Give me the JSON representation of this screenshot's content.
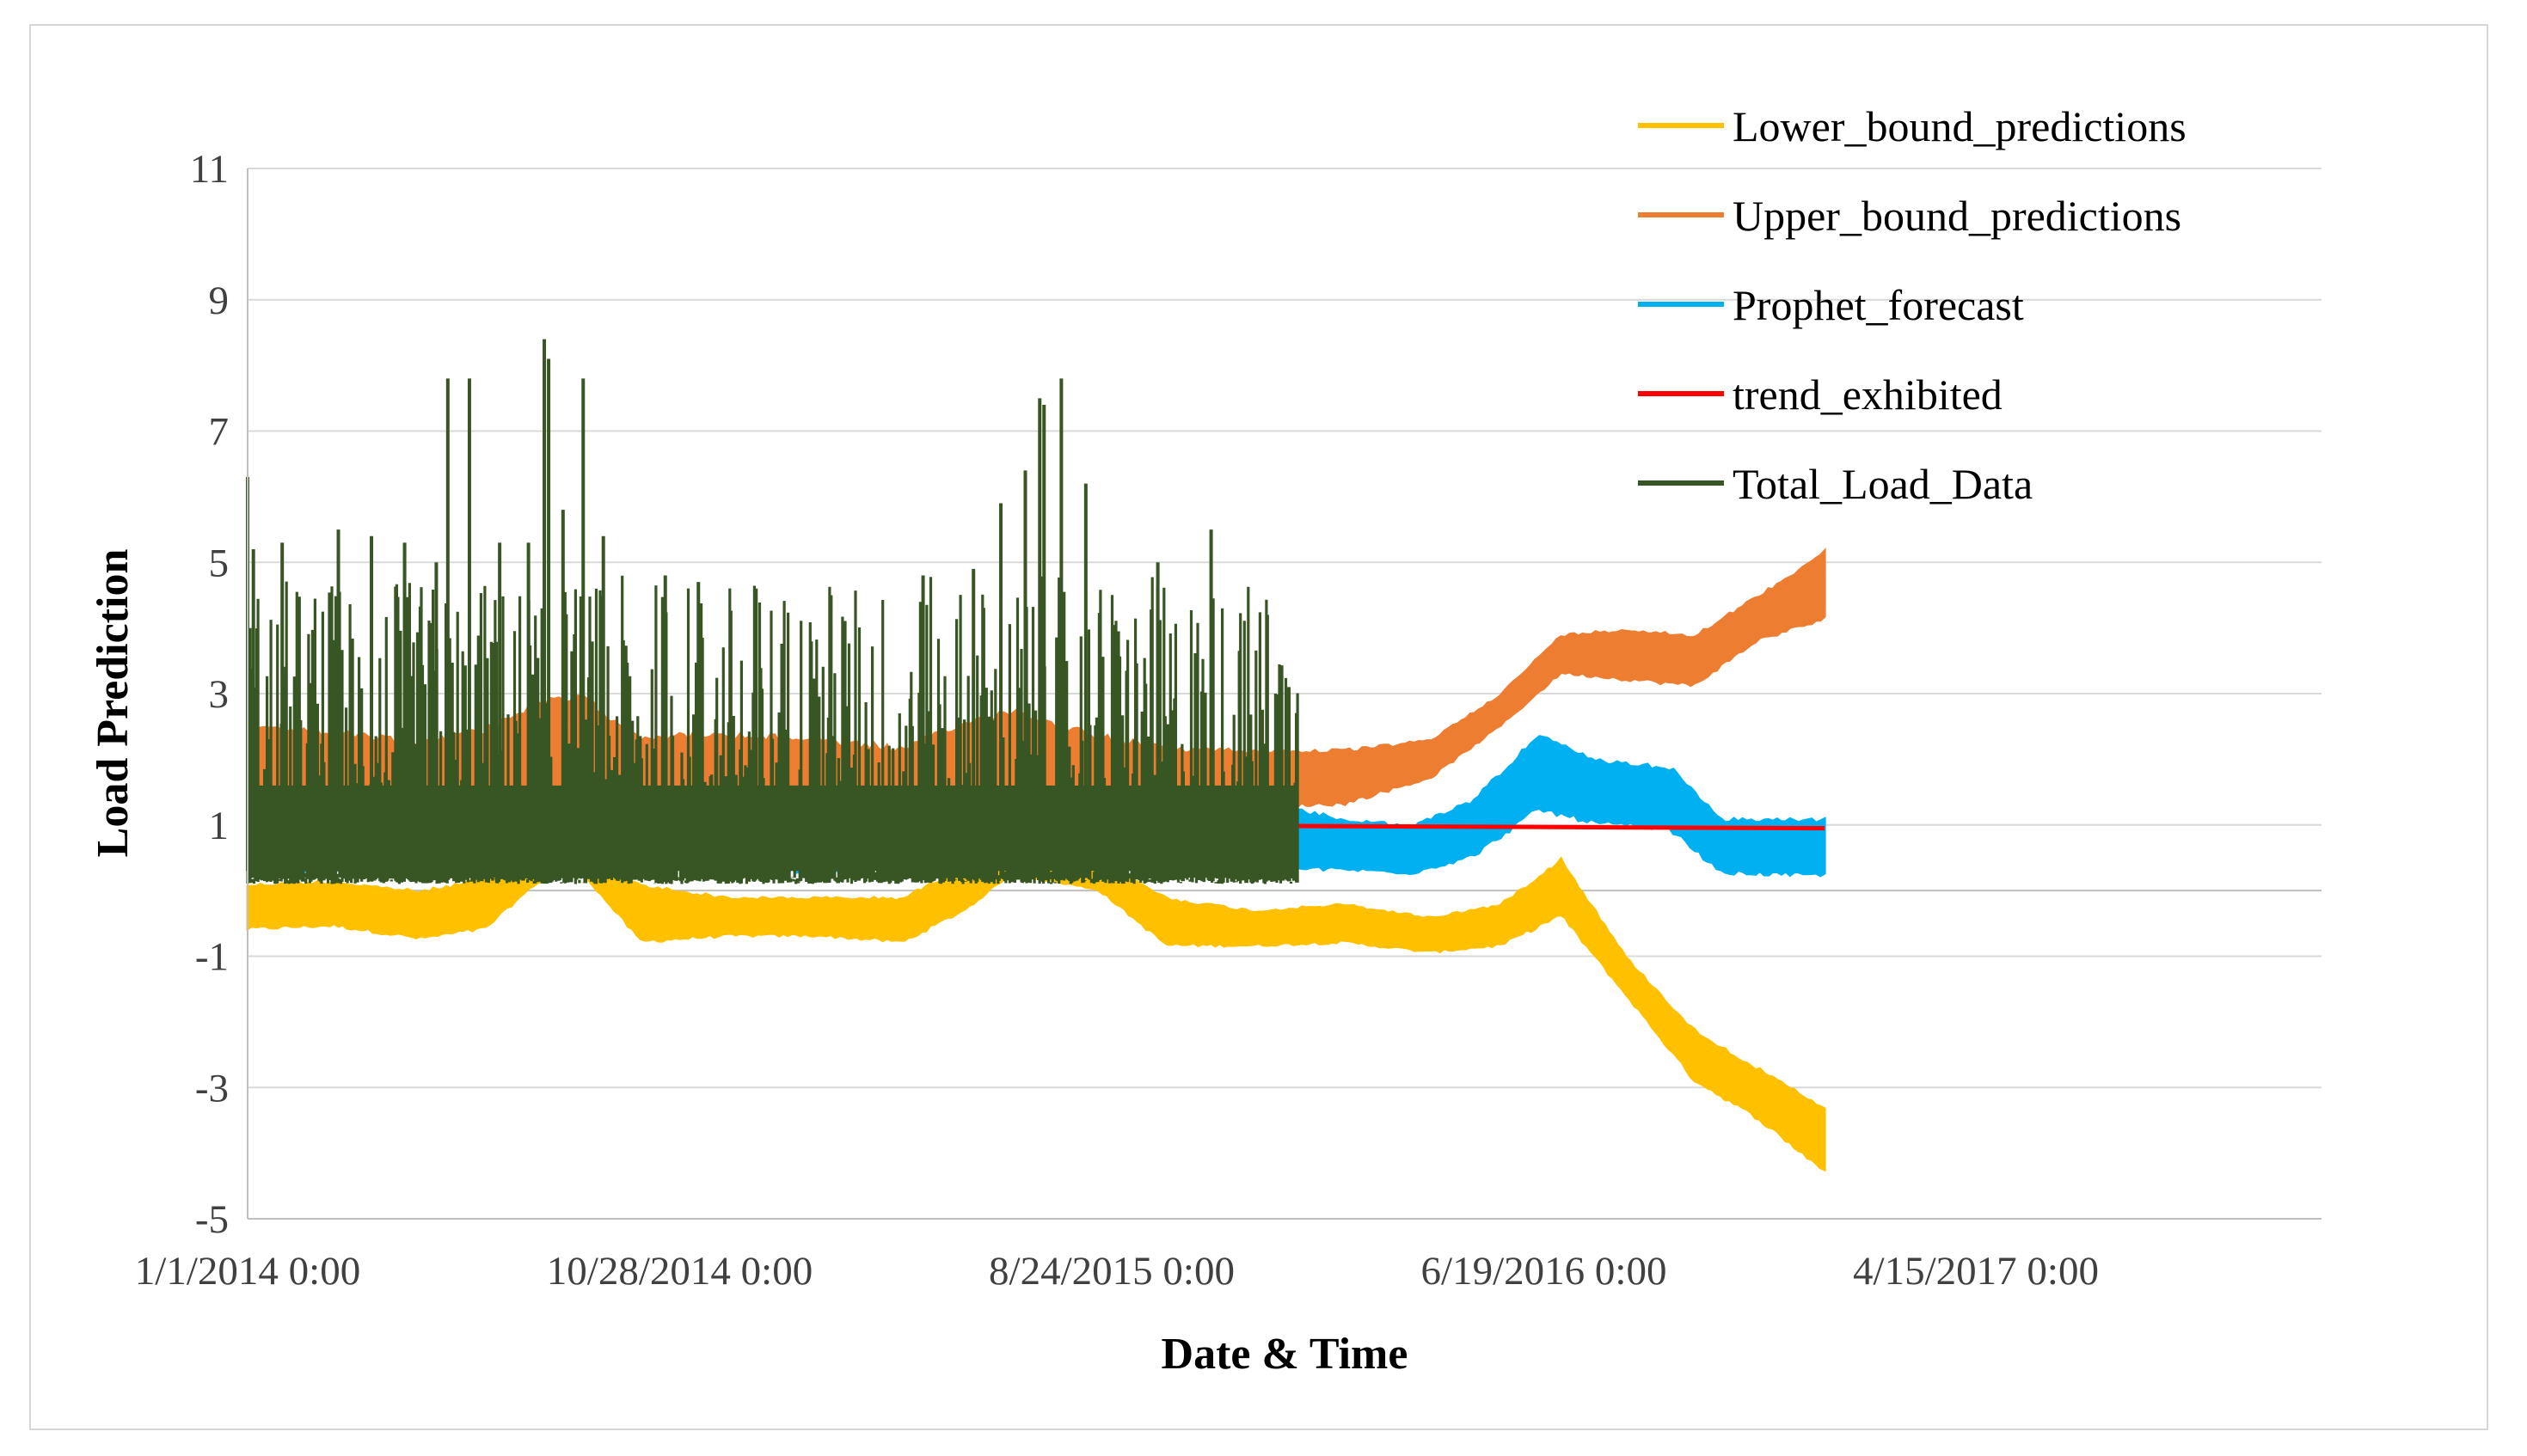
{
  "chart_data": {
    "type": "line",
    "title": "",
    "xlabel": "Date & Time",
    "ylabel": "Load Prediction",
    "ylim": [
      -5,
      11
    ],
    "yticks": [
      -5,
      -3,
      -1,
      1,
      3,
      5,
      7,
      9,
      11
    ],
    "xlim": [
      "2014-01-01",
      "2017-12-11"
    ],
    "xticks": [
      {
        "date": "2014-01-01",
        "label": "1/1/2014 0:00"
      },
      {
        "date": "2014-10-28",
        "label": "10/28/2014 0:00"
      },
      {
        "date": "2015-08-24",
        "label": "8/24/2015 0:00"
      },
      {
        "date": "2016-06-19",
        "label": "6/19/2016 0:00"
      },
      {
        "date": "2017-04-15",
        "label": "4/15/2017 0:00"
      }
    ],
    "grid": "horizontal",
    "legend_position": "top-right",
    "series": [
      {
        "name": "Lower_bound_predictions",
        "color": "#FFC000",
        "render": "band",
        "x": [
          "2014-01-01",
          "2014-03-01",
          "2014-05-01",
          "2014-06-15",
          "2014-07-20",
          "2014-08-20",
          "2014-10-01",
          "2014-12-01",
          "2015-02-01",
          "2015-04-01",
          "2015-05-15",
          "2015-06-15",
          "2015-08-15",
          "2015-10-01",
          "2015-12-01",
          "2016-02-01",
          "2016-04-01",
          "2016-05-20",
          "2016-07-01",
          "2016-08-15",
          "2016-10-01",
          "2016-11-15",
          "2016-12-31"
        ],
        "low": [
          -0.6,
          -0.55,
          -0.75,
          -0.6,
          0.1,
          0.3,
          -0.8,
          -0.7,
          -0.7,
          -0.8,
          -0.3,
          0.25,
          0.0,
          -0.85,
          -0.85,
          -0.8,
          -0.95,
          -0.85,
          -0.4,
          -1.6,
          -2.9,
          -3.5,
          -4.3
        ],
        "high": [
          0.1,
          0.15,
          0.0,
          0.2,
          0.5,
          0.6,
          0.1,
          -0.1,
          -0.1,
          -0.1,
          0.4,
          0.6,
          0.5,
          -0.1,
          -0.3,
          -0.2,
          -0.4,
          -0.2,
          0.5,
          -1.0,
          -2.1,
          -2.7,
          -3.3
        ]
      },
      {
        "name": "Upper_bound_predictions",
        "color": "#ED7D31",
        "render": "band",
        "x": [
          "2014-01-01",
          "2014-03-01",
          "2014-05-01",
          "2014-06-15",
          "2014-07-20",
          "2014-08-20",
          "2014-10-01",
          "2014-12-01",
          "2015-02-01",
          "2015-04-01",
          "2015-05-15",
          "2015-06-15",
          "2015-08-15",
          "2015-10-01",
          "2015-12-01",
          "2016-02-01",
          "2016-04-01",
          "2016-05-20",
          "2016-07-01",
          "2016-08-15",
          "2016-10-01",
          "2016-11-15",
          "2016-12-31"
        ],
        "low": [
          0.9,
          0.95,
          0.8,
          0.95,
          1.2,
          1.3,
          0.8,
          0.8,
          0.75,
          0.6,
          1.0,
          1.2,
          0.8,
          0.85,
          1.25,
          1.3,
          1.7,
          2.5,
          3.3,
          3.2,
          3.1,
          3.8,
          4.1
        ],
        "high": [
          2.5,
          2.45,
          2.3,
          2.5,
          2.9,
          3.0,
          2.4,
          2.4,
          2.35,
          2.2,
          2.6,
          2.8,
          2.4,
          2.2,
          2.15,
          2.15,
          2.3,
          3.0,
          3.9,
          4.0,
          3.9,
          4.5,
          5.2
        ]
      },
      {
        "name": "Prophet_forecast",
        "color": "#00B0F0",
        "render": "band",
        "x": [
          "2014-01-01",
          "2014-05-01",
          "2014-08-01",
          "2014-10-01",
          "2015-02-01",
          "2015-06-01",
          "2015-10-01",
          "2015-12-01",
          "2016-02-01",
          "2016-03-20",
          "2016-05-01",
          "2016-06-15",
          "2016-07-25",
          "2016-09-15",
          "2016-10-20",
          "2016-12-31"
        ],
        "low": [
          0.3,
          0.25,
          0.5,
          0.35,
          0.25,
          0.45,
          0.3,
          0.3,
          0.3,
          0.25,
          0.5,
          1.2,
          1.0,
          0.9,
          0.25,
          0.2
        ],
        "high": [
          1.4,
          1.4,
          1.6,
          1.45,
          1.35,
          1.55,
          1.4,
          1.4,
          1.1,
          1.0,
          1.4,
          2.4,
          2.0,
          1.9,
          1.1,
          1.1
        ]
      },
      {
        "name": "trend_exhibited",
        "color": "#FF0000",
        "render": "line",
        "x": [
          "2014-01-01",
          "2016-12-31"
        ],
        "y": [
          1.05,
          0.95
        ]
      },
      {
        "name": "Total_Load_Data",
        "color": "#375623",
        "render": "spikes",
        "x_start": "2014-01-01",
        "x_end": "2015-12-31",
        "baseline_low": 0.1,
        "baseline_high": 4.8,
        "peaks": [
          {
            "x": "2014-01-01",
            "y": 6.3
          },
          {
            "x": "2014-01-05",
            "y": 5.2
          },
          {
            "x": "2014-01-25",
            "y": 5.3
          },
          {
            "x": "2014-02-05",
            "y": 4.1
          },
          {
            "x": "2014-03-05",
            "y": 5.5
          },
          {
            "x": "2014-03-28",
            "y": 5.4
          },
          {
            "x": "2014-04-20",
            "y": 5.3
          },
          {
            "x": "2014-05-12",
            "y": 5.0
          },
          {
            "x": "2014-05-20",
            "y": 7.8
          },
          {
            "x": "2014-06-04",
            "y": 7.8
          },
          {
            "x": "2014-06-25",
            "y": 5.3
          },
          {
            "x": "2014-07-15",
            "y": 5.3
          },
          {
            "x": "2014-07-26",
            "y": 8.4
          },
          {
            "x": "2014-07-29",
            "y": 8.1
          },
          {
            "x": "2014-08-08",
            "y": 5.8
          },
          {
            "x": "2014-08-22",
            "y": 7.8
          },
          {
            "x": "2014-09-05",
            "y": 5.4
          },
          {
            "x": "2014-10-18",
            "y": 4.8
          },
          {
            "x": "2014-11-10",
            "y": 4.7
          },
          {
            "x": "2014-12-20",
            "y": 4.6
          },
          {
            "x": "2015-02-10",
            "y": 4.5
          },
          {
            "x": "2015-04-15",
            "y": 4.8
          },
          {
            "x": "2015-05-20",
            "y": 4.9
          },
          {
            "x": "2015-06-08",
            "y": 5.9
          },
          {
            "x": "2015-06-25",
            "y": 6.4
          },
          {
            "x": "2015-07-05",
            "y": 7.5
          },
          {
            "x": "2015-07-08",
            "y": 7.4
          },
          {
            "x": "2015-07-20",
            "y": 7.8
          },
          {
            "x": "2015-08-06",
            "y": 6.2
          },
          {
            "x": "2015-09-25",
            "y": 5.0
          },
          {
            "x": "2015-11-01",
            "y": 5.5
          },
          {
            "x": "2015-12-10",
            "y": 4.2
          },
          {
            "x": "2015-12-25",
            "y": 3.1
          }
        ]
      }
    ]
  }
}
